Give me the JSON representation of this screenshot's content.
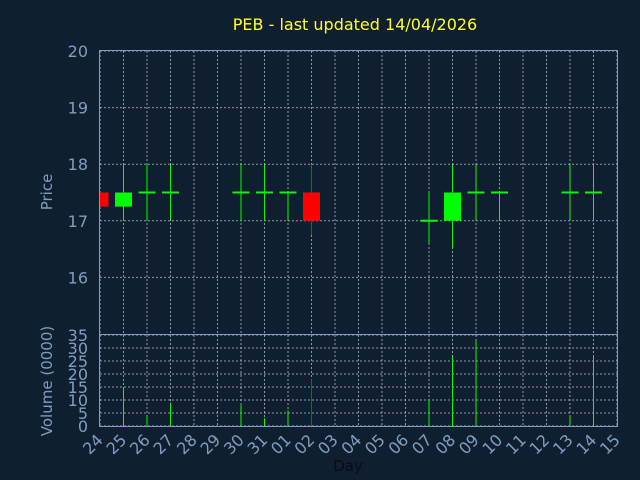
{
  "chart_data": [
    {
      "type": "candlestick",
      "title": "PEB - last updated 14/04/2026",
      "ylabel": "Price",
      "ylim": [
        15,
        20
      ],
      "yticks": [
        "16",
        "17",
        "18",
        "19",
        "20"
      ],
      "categories": [
        "24",
        "25",
        "26",
        "27",
        "28",
        "29",
        "30",
        "31",
        "01",
        "02",
        "03",
        "04",
        "05",
        "06",
        "07",
        "08",
        "09",
        "10",
        "11",
        "12",
        "13",
        "14",
        "15"
      ],
      "up_color": "#00ff00",
      "down_color": "#ff0000",
      "candles": [
        {
          "day": "24",
          "open": 17.5,
          "high": 17.5,
          "low": 17.25,
          "close": 17.25
        },
        {
          "day": "25",
          "open": 17.25,
          "high": 18.0,
          "low": 17.0,
          "close": 17.5
        },
        {
          "day": "26",
          "open": 17.5,
          "high": 18.0,
          "low": 17.0,
          "close": 17.5
        },
        {
          "day": "27",
          "open": 17.5,
          "high": 18.0,
          "low": 17.0,
          "close": 17.5
        },
        {
          "day": "30",
          "open": 17.5,
          "high": 18.0,
          "low": 17.0,
          "close": 17.5
        },
        {
          "day": "31",
          "open": 17.5,
          "high": 18.0,
          "low": 17.0,
          "close": 17.5
        },
        {
          "day": "01",
          "open": 17.5,
          "high": 17.5,
          "low": 17.0,
          "close": 17.5
        },
        {
          "day": "02",
          "open": 17.5,
          "high": 18.0,
          "low": 16.75,
          "close": 17.0
        },
        {
          "day": "07",
          "open": 17.0,
          "high": 17.5,
          "low": 16.6,
          "close": 17.0
        },
        {
          "day": "08",
          "open": 17.0,
          "high": 18.0,
          "low": 16.5,
          "close": 17.5
        },
        {
          "day": "09",
          "open": 17.5,
          "high": 18.0,
          "low": 17.0,
          "close": 17.5
        },
        {
          "day": "10",
          "open": 17.5,
          "high": 17.5,
          "low": 17.0,
          "close": 17.5
        },
        {
          "day": "13",
          "open": 17.5,
          "high": 18.0,
          "low": 17.0,
          "close": 17.5
        },
        {
          "day": "14",
          "open": 17.5,
          "high": 18.0,
          "low": 17.0,
          "close": 17.5
        }
      ]
    },
    {
      "type": "bar",
      "ylabel": "Volume (0000)",
      "xlabel": "Day",
      "ylim": [
        0,
        35
      ],
      "yticks": [
        "0",
        "5",
        "10",
        "15",
        "20",
        "25",
        "30",
        "35"
      ],
      "categories": [
        "24",
        "25",
        "26",
        "27",
        "28",
        "29",
        "30",
        "31",
        "01",
        "02",
        "03",
        "04",
        "05",
        "06",
        "07",
        "08",
        "09",
        "10",
        "11",
        "12",
        "13",
        "14",
        "15"
      ],
      "values": [
        0,
        15,
        4,
        9,
        0,
        0,
        8,
        3,
        6,
        18,
        0,
        0,
        0,
        0,
        10,
        27,
        33,
        0,
        0,
        0,
        4,
        27,
        0
      ],
      "colors": [
        "#00ff00",
        "#00ff00",
        "#00ff00",
        "#00ff00",
        "#00ff00",
        "#00ff00",
        "#00ff00",
        "#00ff00",
        "#00ff00",
        "#ff0000",
        "#00ff00",
        "#00ff00",
        "#00ff00",
        "#00ff00",
        "#00ff00",
        "#00ff00",
        "#00ff00",
        "#00ff00",
        "#00ff00",
        "#00ff00",
        "#00ff00",
        "#00ff00",
        "#00ff00"
      ]
    }
  ]
}
